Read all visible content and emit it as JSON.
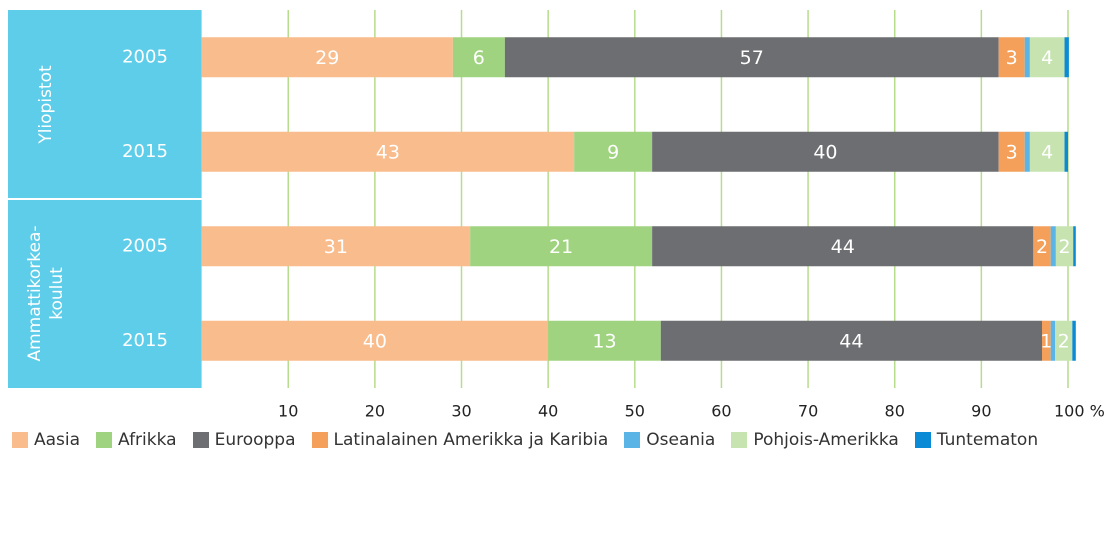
{
  "chart_data": {
    "type": "stacked-bar-horizontal",
    "groups": [
      {
        "label": [
          "Yliopistot"
        ]
      },
      {
        "label": [
          "Ammattikorkea-",
          "koulut"
        ]
      }
    ],
    "categories": [
      "2005",
      "2015",
      "2005",
      "2015"
    ],
    "series": [
      {
        "name": "Aasia",
        "color": "#f9bc8c",
        "values": [
          29,
          43,
          31,
          40
        ]
      },
      {
        "name": "Afrikka",
        "color": "#9fd37f",
        "values": [
          6,
          9,
          21,
          13
        ]
      },
      {
        "name": "Eurooppa",
        "color": "#6d6e71",
        "values": [
          57,
          40,
          44,
          44
        ]
      },
      {
        "name": "Latinalainen Amerikka ja Karibia",
        "color": "#f4a05a",
        "values": [
          3,
          3,
          2,
          1
        ]
      },
      {
        "name": "Oseania",
        "color": "#5ab4e5",
        "values": [
          0.6,
          0.6,
          0.6,
          0.5
        ]
      },
      {
        "name": "Pohjois-Amerikka",
        "color": "#c6e3b0",
        "values": [
          4,
          4,
          2,
          2
        ]
      },
      {
        "name": "Tuntematon",
        "color": "#0b8bd6",
        "values": [
          0.5,
          0.4,
          0.3,
          0.4
        ]
      }
    ],
    "labeled_series": [
      0,
      1,
      2,
      3,
      5
    ],
    "xlim": [
      0,
      100
    ],
    "xticks": [
      10,
      20,
      30,
      40,
      50,
      60,
      70,
      80,
      90,
      {
        "value": 100,
        "label": "100 %"
      }
    ],
    "grid": true,
    "grid_color": "#b7dc8c",
    "panel_color": "#5ecde9",
    "legend": "bottom"
  }
}
